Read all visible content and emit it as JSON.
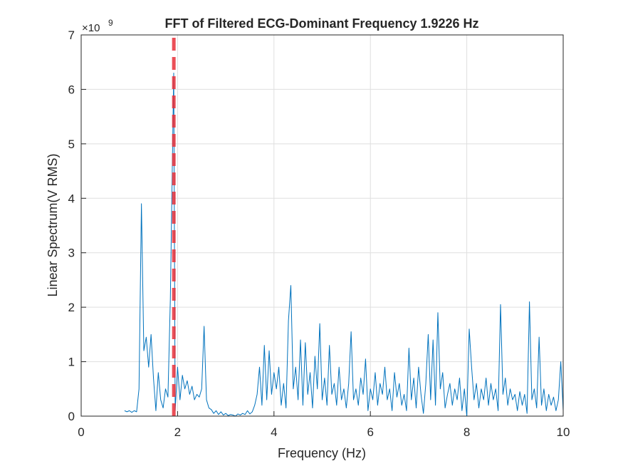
{
  "chart_data": {
    "type": "line",
    "title": "FFT of Filtered ECG-Dominant Frequency 1.9226 Hz",
    "xlabel": "Frequency (Hz)",
    "ylabel": "Linear Spectrum(V RMS)",
    "y_exponent": {
      "base": "×10",
      "power": "9"
    },
    "color": "#0072bd",
    "grid": true,
    "xlim": [
      0,
      10
    ],
    "xticks": [
      0,
      2,
      4,
      6,
      8,
      10
    ],
    "ylim": [
      0,
      7
    ],
    "yticks": [
      0,
      1,
      2,
      3,
      4,
      5,
      6,
      7
    ],
    "reference_line": {
      "x": 1.9226,
      "color": "#e8303a",
      "style": "dashed"
    },
    "x": [
      0.9,
      0.95,
      1.0,
      1.05,
      1.1,
      1.15,
      1.2,
      1.25,
      1.3,
      1.35,
      1.4,
      1.45,
      1.5,
      1.55,
      1.6,
      1.65,
      1.7,
      1.75,
      1.8,
      1.85,
      1.92,
      1.95,
      2.0,
      2.05,
      2.1,
      2.15,
      2.2,
      2.25,
      2.3,
      2.35,
      2.4,
      2.45,
      2.5,
      2.55,
      2.6,
      2.65,
      2.7,
      2.75,
      2.8,
      2.85,
      2.9,
      2.95,
      3.0,
      3.05,
      3.1,
      3.15,
      3.2,
      3.25,
      3.3,
      3.35,
      3.4,
      3.45,
      3.5,
      3.55,
      3.6,
      3.65,
      3.7,
      3.75,
      3.8,
      3.85,
      3.9,
      3.95,
      4.0,
      4.05,
      4.1,
      4.15,
      4.2,
      4.25,
      4.3,
      4.35,
      4.4,
      4.45,
      4.5,
      4.55,
      4.6,
      4.65,
      4.7,
      4.75,
      4.8,
      4.85,
      4.9,
      4.95,
      5.0,
      5.05,
      5.1,
      5.15,
      5.2,
      5.25,
      5.3,
      5.35,
      5.4,
      5.45,
      5.5,
      5.55,
      5.6,
      5.65,
      5.7,
      5.75,
      5.8,
      5.85,
      5.9,
      5.95,
      6.0,
      6.05,
      6.1,
      6.15,
      6.2,
      6.25,
      6.3,
      6.35,
      6.4,
      6.45,
      6.5,
      6.55,
      6.6,
      6.65,
      6.7,
      6.75,
      6.8,
      6.85,
      6.9,
      6.95,
      7.0,
      7.05,
      7.1,
      7.15,
      7.2,
      7.25,
      7.3,
      7.35,
      7.4,
      7.45,
      7.5,
      7.55,
      7.6,
      7.65,
      7.7,
      7.75,
      7.8,
      7.85,
      7.9,
      7.95,
      8.0,
      8.05,
      8.1,
      8.15,
      8.2,
      8.25,
      8.3,
      8.35,
      8.4,
      8.45,
      8.5,
      8.55,
      8.6,
      8.65,
      8.7,
      8.75,
      8.8,
      8.85,
      8.9,
      8.95,
      9.0,
      9.05,
      9.1,
      9.15,
      9.2,
      9.25,
      9.3,
      9.35,
      9.4,
      9.45,
      9.5,
      9.55,
      9.6,
      9.65,
      9.7,
      9.75,
      9.8,
      9.85,
      9.9,
      9.95,
      10.0
    ],
    "values": [
      0.1,
      0.08,
      0.1,
      0.07,
      0.1,
      0.08,
      0.5,
      3.9,
      1.2,
      1.45,
      0.9,
      1.5,
      0.7,
      0.1,
      0.8,
      0.3,
      0.15,
      0.5,
      0.35,
      2.15,
      6.3,
      0.1,
      0.9,
      0.3,
      0.75,
      0.5,
      0.65,
      0.4,
      0.55,
      0.3,
      0.4,
      0.35,
      0.5,
      1.65,
      0.3,
      0.15,
      0.12,
      0.05,
      0.1,
      0.03,
      0.08,
      0.02,
      0.05,
      0.01,
      0.03,
      0.02,
      0.0,
      0.04,
      0.02,
      0.05,
      0.03,
      0.1,
      0.04,
      0.08,
      0.2,
      0.4,
      0.9,
      0.2,
      1.3,
      0.3,
      1.2,
      0.4,
      0.8,
      0.5,
      0.9,
      0.2,
      0.6,
      0.15,
      1.75,
      2.4,
      0.5,
      0.9,
      0.3,
      1.4,
      0.2,
      1.35,
      0.4,
      0.8,
      0.15,
      1.1,
      0.5,
      1.7,
      0.3,
      0.7,
      0.2,
      1.3,
      0.4,
      0.6,
      0.2,
      0.9,
      0.3,
      0.5,
      0.15,
      0.6,
      1.55,
      0.3,
      0.5,
      0.2,
      0.7,
      0.4,
      1.05,
      0.1,
      0.5,
      0.3,
      0.8,
      0.2,
      0.6,
      0.4,
      0.9,
      0.3,
      0.5,
      0.1,
      0.8,
      0.35,
      0.6,
      0.2,
      0.4,
      0.1,
      1.25,
      0.3,
      0.7,
      0.15,
      0.9,
      0.4,
      0.05,
      0.6,
      1.5,
      0.3,
      1.4,
      0.2,
      1.9,
      0.5,
      0.8,
      0.15,
      0.4,
      0.6,
      0.2,
      0.5,
      0.3,
      0.7,
      0.1,
      0.5,
      0.0,
      1.6,
      0.9,
      0.3,
      0.6,
      0.15,
      0.5,
      0.3,
      0.7,
      0.2,
      0.6,
      0.3,
      0.5,
      0.1,
      2.05,
      0.4,
      0.7,
      0.2,
      0.5,
      0.3,
      0.4,
      0.1,
      0.45,
      0.2,
      0.4,
      0.05,
      2.1,
      0.3,
      0.5,
      0.15,
      1.45,
      0.2,
      0.5,
      0.1,
      0.4,
      0.2,
      0.35,
      0.1,
      0.3,
      1.0,
      0.1
    ]
  }
}
